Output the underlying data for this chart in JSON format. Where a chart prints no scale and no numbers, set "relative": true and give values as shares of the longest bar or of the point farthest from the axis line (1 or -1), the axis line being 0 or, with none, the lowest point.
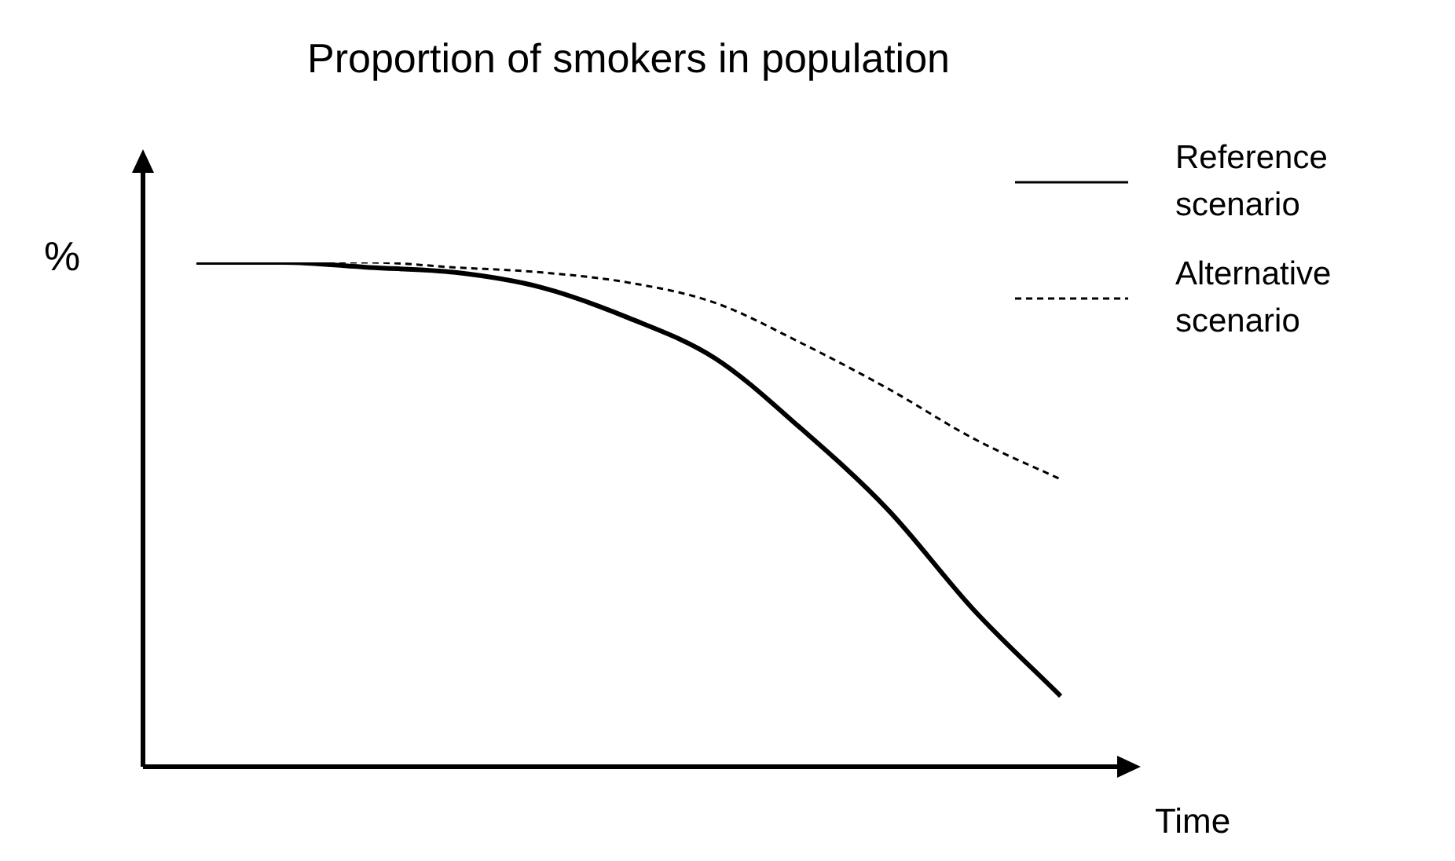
{
  "chart_data": {
    "type": "line",
    "title": "Proportion of smokers in population",
    "xlabel": "Time",
    "ylabel": "%",
    "relative": true,
    "legend": "top right",
    "marker": "none",
    "categories": [
      null,
      null,
      null,
      null,
      null,
      null,
      null,
      null,
      null,
      null,
      null
    ],
    "series": [
      {
        "name": "Reference scenario",
        "color": "#000000",
        "line_style": "solid",
        "values": [
          1.0,
          1.0,
          0.99,
          0.98,
          0.95,
          0.89,
          0.81,
          0.67,
          0.51,
          0.31,
          0.14
        ]
      },
      {
        "name": "Alternative scenario",
        "color": "#000000",
        "line_style": "dashed",
        "values": [
          1.0,
          1.0,
          1.0,
          0.99,
          0.98,
          0.96,
          0.92,
          0.84,
          0.75,
          0.65,
          0.57
        ]
      }
    ]
  }
}
